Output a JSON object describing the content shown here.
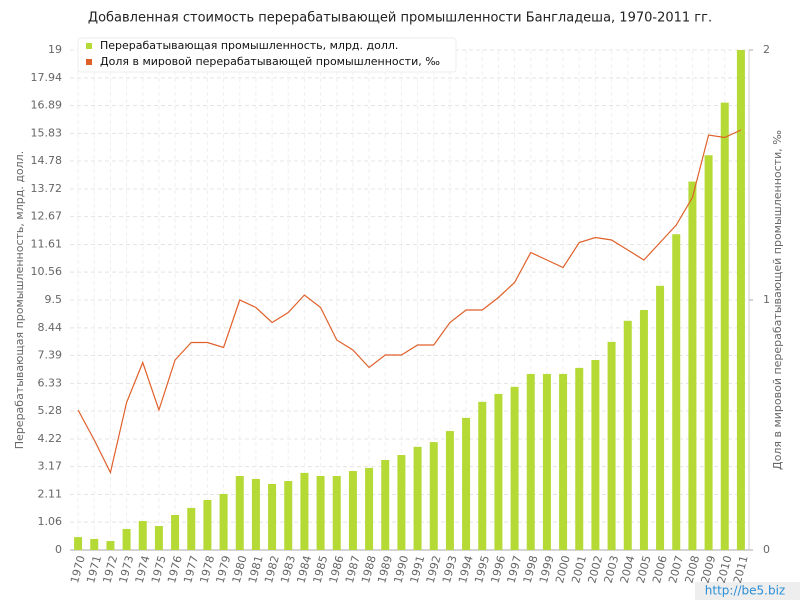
{
  "chart_data": {
    "type": "bar_line",
    "title": "Добавленная стоимость перерабатывающей промышленности Бангладеша, 1970-2011 гг.",
    "y_label": "Перерабатывающая промышленность, млрд. долл.",
    "y2_label": "Доля в мировой перерабатывающей промышленности, ‰",
    "watermark": "http://be5.biz",
    "categories": [
      "1970",
      "1971",
      "1972",
      "1973",
      "1974",
      "1975",
      "1976",
      "1977",
      "1978",
      "1979",
      "1980",
      "1981",
      "1982",
      "1983",
      "1984",
      "1985",
      "1986",
      "1987",
      "1988",
      "1989",
      "1990",
      "1991",
      "1992",
      "1993",
      "1994",
      "1995",
      "1996",
      "1997",
      "1998",
      "1999",
      "2000",
      "2001",
      "2002",
      "2003",
      "2004",
      "2005",
      "2006",
      "2007",
      "2008",
      "2009",
      "2010",
      "2011"
    ],
    "series": [
      {
        "name": "Перерабатывающая промышленность, млрд. долл.",
        "color": "#b5d935",
        "type": "bar",
        "values": [
          0.49,
          0.42,
          0.34,
          0.8,
          1.1,
          0.91,
          1.33,
          1.6,
          1.9,
          2.13,
          2.81,
          2.7,
          2.51,
          2.62,
          2.93,
          2.81,
          2.81,
          3.0,
          3.12,
          3.42,
          3.61,
          3.92,
          4.1,
          4.52,
          5.02,
          5.63,
          5.93,
          6.2,
          6.69,
          6.69,
          6.69,
          6.92,
          7.22,
          7.91,
          8.71,
          9.12,
          10.04,
          12.0,
          14.0,
          15.0,
          17.0,
          19.0
        ]
      },
      {
        "name": "Доля в мировой перерабатывающей промышленности, ‰",
        "color": "#e0602a",
        "type": "line",
        "axis": "y2",
        "values": [
          0.56,
          0.44,
          0.31,
          0.59,
          0.75,
          0.56,
          0.76,
          0.83,
          0.83,
          0.81,
          1.0,
          0.97,
          0.91,
          0.95,
          1.02,
          0.97,
          0.84,
          0.8,
          0.73,
          0.78,
          0.78,
          0.82,
          0.82,
          0.91,
          0.96,
          0.96,
          1.01,
          1.07,
          1.19,
          1.16,
          1.13,
          1.23,
          1.25,
          1.24,
          1.2,
          1.16,
          1.23,
          1.3,
          1.41,
          1.66,
          1.65,
          1.68
        ]
      }
    ],
    "ylim": [
      0,
      19
    ],
    "yticks": [
      0,
      1.06,
      2.11,
      3.17,
      4.22,
      5.28,
      6.33,
      7.39,
      8.44,
      9.5,
      10.56,
      11.61,
      12.67,
      13.72,
      14.78,
      15.83,
      16.89,
      17.94,
      19
    ],
    "y2lim": [
      0,
      2
    ],
    "y2ticks": [
      0,
      1,
      2
    ],
    "grid": true
  }
}
